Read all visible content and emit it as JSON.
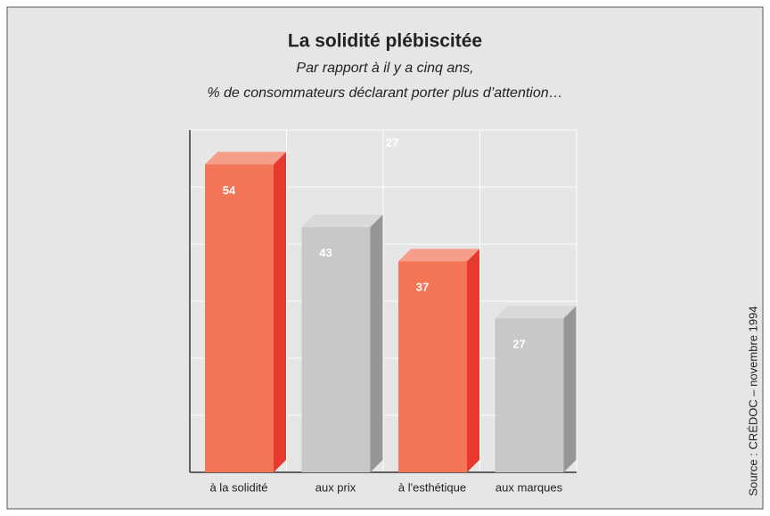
{
  "chart_data": {
    "type": "bar3d",
    "title": "La solidité plébiscitée",
    "subtitle": [
      "Par rapport à il y a cinq ans,",
      "% de consommateurs déclarant porter plus d’attention…"
    ],
    "categories": [
      "à la solidité",
      "aux prix",
      "à l'esthétique",
      "aux marques"
    ],
    "values": [
      54,
      43,
      37,
      27
    ],
    "colors": [
      "#f37558",
      "#c8c8c8",
      "#f37558",
      "#c8c8c8"
    ],
    "ylim": [
      0,
      60
    ],
    "yticks": [
      0,
      10,
      20,
      30,
      40,
      50,
      60
    ],
    "grid": true,
    "annotation": "27",
    "source": "Source : CRÉDOC – novembre 1994"
  }
}
